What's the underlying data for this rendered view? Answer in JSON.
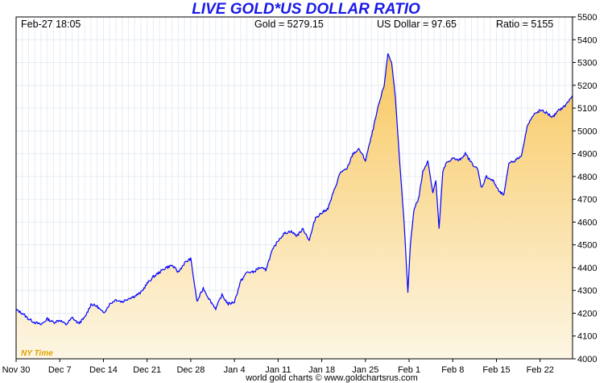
{
  "chart_data": {
    "type": "area",
    "title": "LIVE GOLD*US DOLLAR RATIO",
    "header": {
      "datetime": "Feb-27  18:05",
      "gold": "Gold = 5279.15",
      "usd": "US Dollar = 97.65",
      "ratio": "Ratio = 5155"
    },
    "x_tick_labels": [
      "Nov 30",
      "Dec 7",
      "Dec 14",
      "Dec 21",
      "Dec 28",
      "Jan 4",
      "Jan 11",
      "Jan 18",
      "Jan 25",
      "Feb 1",
      "Feb 8",
      "Feb 15",
      "Feb 22"
    ],
    "y_tick_labels": [
      "4000",
      "4100",
      "4200",
      "4300",
      "4400",
      "4500",
      "4600",
      "4700",
      "4800",
      "4900",
      "5000",
      "5100",
      "5200",
      "5300",
      "5400",
      "5500"
    ],
    "ylim": [
      4000,
      5500
    ],
    "xlim": [
      0,
      89.2
    ],
    "x_unit": "days since Nov 30",
    "grid": true,
    "time_zone_label": "NY Time",
    "credit": "world gold charts © www.goldchartsrus.com",
    "colors": {
      "line": "#0000ff",
      "fill_top": "#f8c860",
      "fill_bottom": "#fdf6e4",
      "grid": "#e6ecf4",
      "title": "#1a1ae6",
      "nytime": "#e0a000"
    },
    "series": [
      {
        "name": "Gold/USD Ratio",
        "points": [
          [
            0,
            4215
          ],
          [
            1,
            4200
          ],
          [
            2,
            4175
          ],
          [
            3,
            4160
          ],
          [
            4,
            4150
          ],
          [
            5,
            4175
          ],
          [
            6,
            4160
          ],
          [
            7,
            4170
          ],
          [
            8,
            4150
          ],
          [
            9,
            4180
          ],
          [
            10,
            4155
          ],
          [
            11,
            4180
          ],
          [
            12,
            4240
          ],
          [
            13,
            4230
          ],
          [
            14,
            4200
          ],
          [
            15,
            4240
          ],
          [
            16,
            4260
          ],
          [
            17,
            4250
          ],
          [
            18,
            4265
          ],
          [
            19,
            4275
          ],
          [
            20,
            4290
          ],
          [
            21,
            4330
          ],
          [
            22,
            4360
          ],
          [
            23,
            4380
          ],
          [
            24,
            4400
          ],
          [
            25,
            4410
          ],
          [
            26,
            4380
          ],
          [
            27,
            4420
          ],
          [
            28,
            4440
          ],
          [
            29,
            4250
          ],
          [
            30,
            4310
          ],
          [
            31,
            4260
          ],
          [
            32,
            4220
          ],
          [
            33,
            4280
          ],
          [
            34,
            4240
          ],
          [
            35,
            4250
          ],
          [
            36,
            4340
          ],
          [
            37,
            4380
          ],
          [
            38,
            4380
          ],
          [
            39,
            4400
          ],
          [
            40,
            4390
          ],
          [
            41,
            4470
          ],
          [
            42,
            4520
          ],
          [
            43,
            4550
          ],
          [
            44,
            4560
          ],
          [
            45,
            4540
          ],
          [
            46,
            4570
          ],
          [
            47,
            4520
          ],
          [
            48,
            4620
          ],
          [
            49,
            4640
          ],
          [
            50,
            4660
          ],
          [
            51,
            4740
          ],
          [
            52,
            4820
          ],
          [
            53,
            4830
          ],
          [
            54,
            4900
          ],
          [
            55,
            4920
          ],
          [
            56,
            4870
          ],
          [
            57,
            4980
          ],
          [
            58,
            5100
          ],
          [
            59,
            5200
          ],
          [
            59.6,
            5340
          ],
          [
            60.2,
            5300
          ],
          [
            60.8,
            5150
          ],
          [
            61.5,
            4860
          ],
          [
            62.2,
            4600
          ],
          [
            62.8,
            4290
          ],
          [
            63.2,
            4500
          ],
          [
            63.8,
            4660
          ],
          [
            64.5,
            4700
          ],
          [
            65.2,
            4820
          ],
          [
            66,
            4870
          ],
          [
            66.8,
            4730
          ],
          [
            67.3,
            4780
          ],
          [
            67.8,
            4570
          ],
          [
            68.4,
            4820
          ],
          [
            69,
            4860
          ],
          [
            70,
            4880
          ],
          [
            71,
            4870
          ],
          [
            72,
            4900
          ],
          [
            73,
            4860
          ],
          [
            74,
            4830
          ],
          [
            74.6,
            4750
          ],
          [
            75.4,
            4800
          ],
          [
            76.5,
            4780
          ],
          [
            77.5,
            4730
          ],
          [
            78.2,
            4720
          ],
          [
            79,
            4860
          ],
          [
            80,
            4870
          ],
          [
            81,
            4890
          ],
          [
            82,
            5030
          ],
          [
            83,
            5070
          ],
          [
            84,
            5090
          ],
          [
            85,
            5080
          ],
          [
            86,
            5060
          ],
          [
            87,
            5090
          ],
          [
            88,
            5110
          ],
          [
            89.2,
            5155
          ]
        ]
      }
    ]
  }
}
